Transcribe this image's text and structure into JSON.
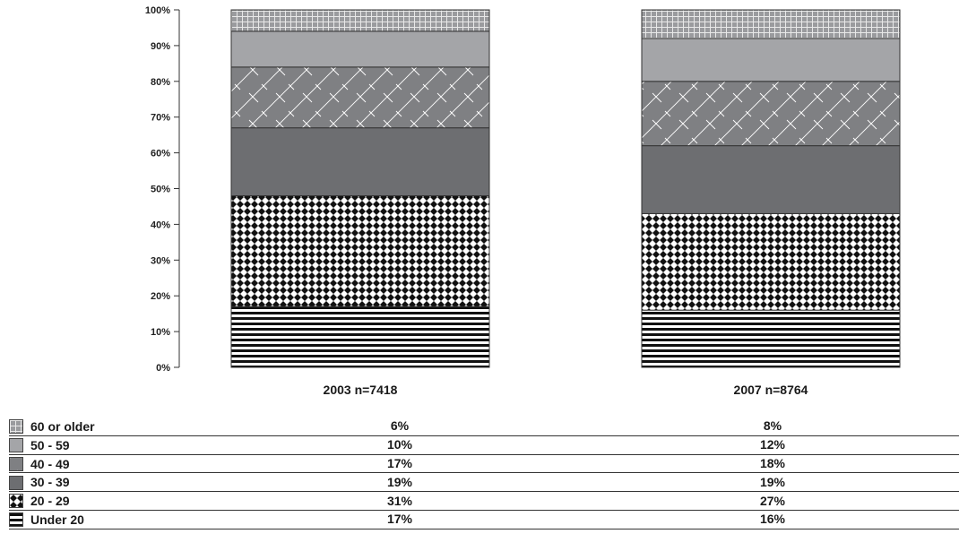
{
  "chart_data": {
    "type": "bar",
    "stacked": true,
    "percent": true,
    "categories": [
      "2003 n=7418",
      "2007 n=8764"
    ],
    "series": [
      {
        "name": "Under 20",
        "values": [
          17,
          16
        ],
        "pattern": "hstripes",
        "color": "#111111"
      },
      {
        "name": "20 - 29",
        "values": [
          31,
          27
        ],
        "pattern": "checker",
        "color": "#111111"
      },
      {
        "name": "30 - 39",
        "values": [
          19,
          19
        ],
        "pattern": "solid",
        "color": "#6d6e71"
      },
      {
        "name": "40 - 49",
        "values": [
          17,
          18
        ],
        "pattern": "diagonal",
        "color": "#7f8083"
      },
      {
        "name": "50 - 59",
        "values": [
          10,
          12
        ],
        "pattern": "solid",
        "color": "#a4a5a8"
      },
      {
        "name": "60 or older",
        "values": [
          6,
          8
        ],
        "pattern": "grid",
        "color": "#9a9b9e"
      }
    ],
    "y_ticks": [
      "0%",
      "10%",
      "20%",
      "30%",
      "40%",
      "50%",
      "60%",
      "70%",
      "80%",
      "90%",
      "100%"
    ],
    "ylim": [
      0,
      100
    ],
    "legend_placement": "bottom-table",
    "table_rows": [
      {
        "label": "60 or older",
        "values": [
          "6%",
          "8%"
        ]
      },
      {
        "label": "50 - 59",
        "values": [
          "10%",
          "12%"
        ]
      },
      {
        "label": "40 - 49",
        "values": [
          "17%",
          "18%"
        ]
      },
      {
        "label": "30 - 39",
        "values": [
          "19%",
          "19%"
        ]
      },
      {
        "label": "20 - 29",
        "values": [
          "31%",
          "27%"
        ]
      },
      {
        "label": "Under 20",
        "values": [
          "17%",
          "16%"
        ]
      }
    ]
  }
}
